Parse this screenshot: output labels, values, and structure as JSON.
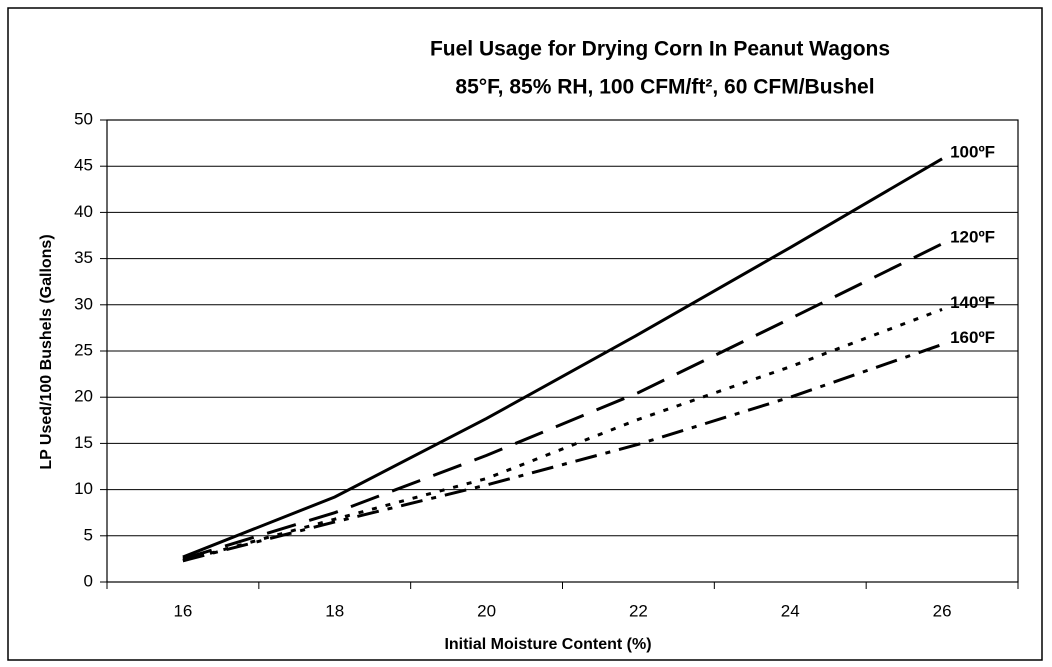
{
  "chart_data": {
    "type": "line",
    "title": "Fuel Usage for Drying Corn In Peanut Wagons",
    "subtitle": "85°F, 85% RH, 100 CFM/ft², 60 CFM/Bushel",
    "x_label": "Initial Moisture Content (%)",
    "y_label": "LP Used/100 Bushels (Gallons)",
    "categories": [
      "16",
      "18",
      "20",
      "22",
      "24",
      "26"
    ],
    "series": [
      {
        "name": "100ºF",
        "color": "#000000",
        "dash": "solid",
        "values": [
          2.7,
          9.2,
          17.7,
          26.8,
          36.2,
          45.8
        ]
      },
      {
        "name": "120ºF",
        "color": "#000000",
        "dash": "long-dash",
        "values": [
          2.5,
          7.5,
          13.7,
          20.5,
          28.5,
          36.6
        ]
      },
      {
        "name": "140ºF",
        "color": "#000000",
        "dash": "dot",
        "values": [
          2.3,
          6.8,
          11.2,
          17.6,
          23.3,
          29.5
        ]
      },
      {
        "name": "160ºF",
        "color": "#000000",
        "dash": "dash-dot",
        "values": [
          2.3,
          6.5,
          10.5,
          14.9,
          20.0,
          25.7
        ]
      }
    ],
    "ylim": [
      0,
      50
    ],
    "yticks": [
      0,
      5,
      10,
      15,
      20,
      25,
      30,
      35,
      40,
      45,
      50
    ],
    "grid": true
  }
}
